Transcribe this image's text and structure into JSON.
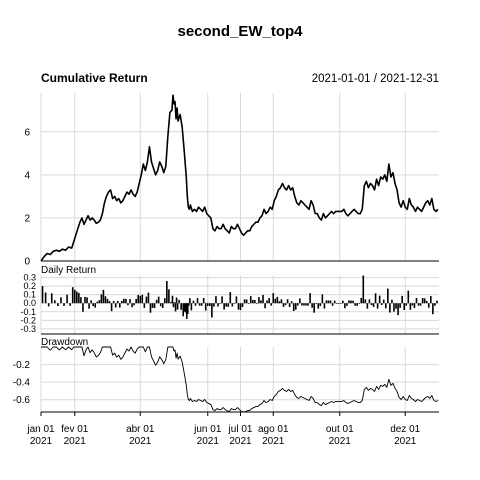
{
  "chart_data": {
    "type": "line",
    "title": "second_EW_top4",
    "panels": {
      "cumulative": {
        "title": "Cumulative Return",
        "date_range": "2021-01-01 / 2021-12-31",
        "yticks": [
          0,
          2,
          4,
          6
        ],
        "ylim": [
          0,
          7.8
        ],
        "points": [
          [
            0,
            0
          ],
          [
            3,
            0.2
          ],
          [
            6,
            0.35
          ],
          [
            9,
            0.3
          ],
          [
            12,
            0.45
          ],
          [
            15,
            0.5
          ],
          [
            18,
            0.45
          ],
          [
            21,
            0.55
          ],
          [
            24,
            0.5
          ],
          [
            27,
            0.65
          ],
          [
            30,
            0.6
          ],
          [
            32,
            0.9
          ],
          [
            34,
            1.2
          ],
          [
            36,
            1.5
          ],
          [
            38,
            1.8
          ],
          [
            40,
            2.0
          ],
          [
            42,
            1.7
          ],
          [
            44,
            1.9
          ],
          [
            46,
            2.1
          ],
          [
            48,
            1.9
          ],
          [
            50,
            2.0
          ],
          [
            52,
            1.9
          ],
          [
            54,
            1.75
          ],
          [
            56,
            1.8
          ],
          [
            58,
            1.9
          ],
          [
            60,
            2.2
          ],
          [
            62,
            2.7
          ],
          [
            64,
            3.0
          ],
          [
            66,
            3.2
          ],
          [
            68,
            3.3
          ],
          [
            70,
            2.9
          ],
          [
            72,
            3.0
          ],
          [
            74,
            2.8
          ],
          [
            76,
            2.9
          ],
          [
            78,
            2.7
          ],
          [
            80,
            2.8
          ],
          [
            82,
            3.0
          ],
          [
            84,
            3.2
          ],
          [
            86,
            3.1
          ],
          [
            88,
            3.3
          ],
          [
            90,
            3.1
          ],
          [
            92,
            3.0
          ],
          [
            94,
            3.2
          ],
          [
            96,
            3.6
          ],
          [
            98,
            4.0
          ],
          [
            100,
            4.5
          ],
          [
            102,
            4.2
          ],
          [
            104,
            4.6
          ],
          [
            106,
            5.3
          ],
          [
            108,
            4.6
          ],
          [
            110,
            4.3
          ],
          [
            112,
            4.0
          ],
          [
            114,
            4.2
          ],
          [
            116,
            4.6
          ],
          [
            118,
            4.4
          ],
          [
            120,
            4.1
          ],
          [
            122,
            4.4
          ],
          [
            124,
            5.8
          ],
          [
            126,
            6.9
          ],
          [
            128,
            7.0
          ],
          [
            129,
            7.7
          ],
          [
            130,
            7.3
          ],
          [
            131,
            7.4
          ],
          [
            132,
            6.6
          ],
          [
            133,
            7.1
          ],
          [
            134,
            6.5
          ],
          [
            136,
            6.8
          ],
          [
            138,
            6.2
          ],
          [
            140,
            5.1
          ],
          [
            141,
            4.5
          ],
          [
            142,
            3.9
          ],
          [
            143,
            3.0
          ],
          [
            144,
            2.5
          ],
          [
            145,
            2.4
          ],
          [
            146,
            2.6
          ],
          [
            148,
            2.3
          ],
          [
            150,
            2.4
          ],
          [
            152,
            2.3
          ],
          [
            154,
            2.5
          ],
          [
            156,
            2.4
          ],
          [
            158,
            2.3
          ],
          [
            160,
            2.5
          ],
          [
            162,
            2.2
          ],
          [
            164,
            2.1
          ],
          [
            166,
            2.0
          ],
          [
            168,
            1.5
          ],
          [
            170,
            1.4
          ],
          [
            172,
            1.6
          ],
          [
            174,
            1.5
          ],
          [
            176,
            1.5
          ],
          [
            178,
            1.7
          ],
          [
            180,
            1.5
          ],
          [
            182,
            1.4
          ],
          [
            184,
            1.3
          ],
          [
            186,
            1.6
          ],
          [
            188,
            1.5
          ],
          [
            190,
            1.5
          ],
          [
            192,
            1.7
          ],
          [
            194,
            1.5
          ],
          [
            196,
            1.3
          ],
          [
            198,
            1.2
          ],
          [
            200,
            1.3
          ],
          [
            202,
            1.4
          ],
          [
            204,
            1.4
          ],
          [
            206,
            1.6
          ],
          [
            208,
            1.7
          ],
          [
            210,
            1.8
          ],
          [
            212,
            1.8
          ],
          [
            214,
            2.0
          ],
          [
            216,
            2.1
          ],
          [
            218,
            2.4
          ],
          [
            220,
            2.2
          ],
          [
            222,
            2.3
          ],
          [
            224,
            2.5
          ],
          [
            226,
            2.4
          ],
          [
            228,
            2.8
          ],
          [
            230,
            3.0
          ],
          [
            232,
            3.3
          ],
          [
            234,
            3.4
          ],
          [
            236,
            3.6
          ],
          [
            238,
            3.4
          ],
          [
            240,
            3.3
          ],
          [
            242,
            3.5
          ],
          [
            244,
            3.3
          ],
          [
            246,
            3.4
          ],
          [
            248,
            3.0
          ],
          [
            250,
            2.7
          ],
          [
            252,
            2.6
          ],
          [
            254,
            2.8
          ],
          [
            256,
            2.7
          ],
          [
            258,
            2.6
          ],
          [
            260,
            2.5
          ],
          [
            262,
            2.4
          ],
          [
            264,
            2.8
          ],
          [
            266,
            2.6
          ],
          [
            268,
            2.2
          ],
          [
            270,
            2.2
          ],
          [
            272,
            2.0
          ],
          [
            274,
            1.9
          ],
          [
            276,
            2.2
          ],
          [
            278,
            2.0
          ],
          [
            280,
            2.1
          ],
          [
            282,
            2.2
          ],
          [
            284,
            2.3
          ],
          [
            286,
            2.2
          ],
          [
            288,
            2.3
          ],
          [
            290,
            2.3
          ],
          [
            292,
            2.3
          ],
          [
            294,
            2.3
          ],
          [
            296,
            2.4
          ],
          [
            298,
            2.2
          ],
          [
            300,
            2.1
          ],
          [
            302,
            2.2
          ],
          [
            304,
            2.3
          ],
          [
            306,
            2.4
          ],
          [
            308,
            2.3
          ],
          [
            310,
            2.2
          ],
          [
            312,
            2.2
          ],
          [
            314,
            2.4
          ],
          [
            316,
            3.5
          ],
          [
            318,
            3.7
          ],
          [
            320,
            3.4
          ],
          [
            322,
            3.6
          ],
          [
            324,
            3.5
          ],
          [
            326,
            3.3
          ],
          [
            328,
            3.8
          ],
          [
            330,
            3.5
          ],
          [
            332,
            3.9
          ],
          [
            334,
            3.8
          ],
          [
            336,
            4.0
          ],
          [
            338,
            3.7
          ],
          [
            340,
            4.5
          ],
          [
            342,
            3.9
          ],
          [
            344,
            4.1
          ],
          [
            346,
            3.6
          ],
          [
            348,
            3.3
          ],
          [
            350,
            2.7
          ],
          [
            352,
            2.5
          ],
          [
            354,
            2.8
          ],
          [
            356,
            2.5
          ],
          [
            358,
            2.4
          ],
          [
            360,
            2.9
          ],
          [
            362,
            2.6
          ],
          [
            364,
            2.5
          ],
          [
            366,
            2.3
          ],
          [
            368,
            2.5
          ],
          [
            370,
            2.4
          ],
          [
            372,
            2.3
          ],
          [
            374,
            2.5
          ],
          [
            376,
            2.7
          ],
          [
            378,
            2.8
          ],
          [
            380,
            2.6
          ],
          [
            382,
            2.9
          ],
          [
            384,
            2.4
          ],
          [
            386,
            2.3
          ],
          [
            388,
            2.4
          ]
        ]
      },
      "daily": {
        "title": "Daily Return",
        "yticks": [
          0.3,
          0.2,
          0.1,
          0.0,
          -0.1,
          -0.2,
          -0.3
        ],
        "ytick_labels": [
          "0.3",
          "0.2",
          "0.1",
          "0.0",
          "-0.1",
          "-0.2",
          "-0.3"
        ],
        "ylim": [
          -0.36,
          0.33
        ]
      },
      "drawdown": {
        "title": "Drawdown",
        "yticks": [
          -0.2,
          -0.4,
          -0.6
        ],
        "ytick_labels": [
          "-0.2",
          "-0.4",
          "-0.6"
        ],
        "ylim": [
          -0.74,
          0.0
        ]
      }
    },
    "xlim": [
      0,
      389
    ],
    "xticks": [
      {
        "pos": 0,
        "month": "jan 01",
        "year": "2021"
      },
      {
        "pos": 33,
        "month": "fev 01",
        "year": "2021"
      },
      {
        "pos": 97,
        "month": "abr 01",
        "year": "2021"
      },
      {
        "pos": 163,
        "month": "jun 01",
        "year": "2021"
      },
      {
        "pos": 195,
        "month": "jul 01",
        "year": "2021"
      },
      {
        "pos": 227,
        "month": "ago 01",
        "year": "2021"
      },
      {
        "pos": 292,
        "month": "out 01",
        "year": "2021"
      },
      {
        "pos": 356,
        "month": "dez 01",
        "year": "2021"
      }
    ],
    "grid": true
  }
}
